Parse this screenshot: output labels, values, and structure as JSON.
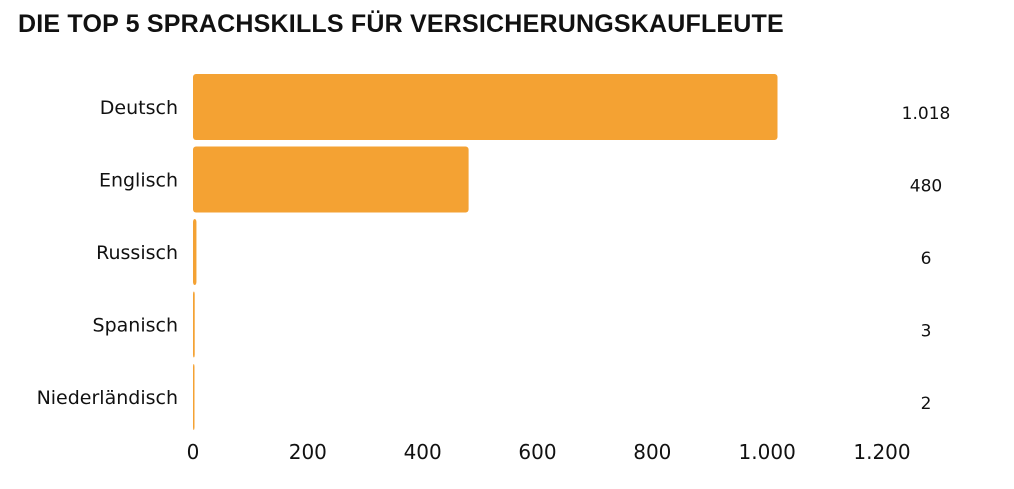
{
  "chart_data": {
    "type": "bar",
    "orientation": "horizontal",
    "title": "DIE TOP 5 SPRACHSKILLS FÜR VERSICHERUNGSKAUFLEUTE",
    "categories": [
      "Deutsch",
      "Englisch",
      "Russisch",
      "Spanisch",
      "Niederländisch"
    ],
    "values": [
      1018,
      480,
      6,
      3,
      2
    ],
    "value_labels": [
      "1.018",
      "480",
      "6",
      "3",
      "2"
    ],
    "xlim": [
      0,
      1200
    ],
    "xticks": [
      0,
      200,
      400,
      600,
      800,
      1000,
      1200
    ],
    "xtick_labels": [
      "0",
      "200",
      "400",
      "600",
      "800",
      "1.000",
      "1.200"
    ],
    "bar_color": "#F4A233",
    "grid": false,
    "legend": "none"
  }
}
